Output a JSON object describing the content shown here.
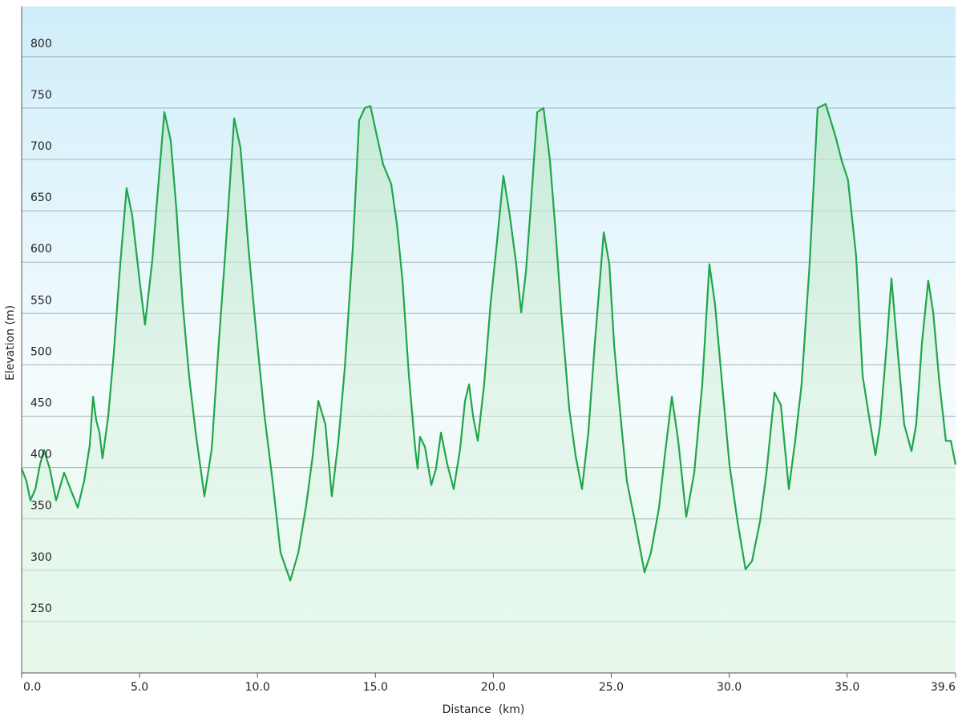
{
  "chart_data": {
    "type": "area",
    "xlabel": "Distance  (km)",
    "ylabel": "Elevation (m)",
    "color": "#1fa64a",
    "grid": true,
    "xlim": [
      0,
      39.6
    ],
    "ylim": [
      200,
      849
    ],
    "xticks": [
      {
        "value": 0,
        "label": "0.0"
      },
      {
        "value": 5,
        "label": "5.0"
      },
      {
        "value": 10,
        "label": "10.0"
      },
      {
        "value": 15,
        "label": "15.0"
      },
      {
        "value": 20,
        "label": "20.0"
      },
      {
        "value": 25,
        "label": "25.0"
      },
      {
        "value": 30,
        "label": "30.0"
      },
      {
        "value": 35,
        "label": "35.0"
      },
      39.6
    ],
    "yticks": [
      250,
      300,
      350,
      400,
      450,
      500,
      550,
      600,
      650,
      700,
      750,
      800
    ],
    "x": [
      0,
      0.2,
      0.37,
      0.58,
      0.78,
      0.95,
      1.19,
      1.46,
      1.8,
      2.07,
      2.38,
      2.65,
      2.89,
      3.03,
      3.16,
      3.3,
      3.43,
      3.67,
      3.91,
      4.18,
      4.45,
      4.69,
      5.0,
      5.23,
      5.54,
      5.74,
      6.05,
      6.32,
      6.56,
      6.83,
      7.1,
      7.38,
      7.75,
      8.06,
      8.33,
      8.67,
      9.01,
      9.28,
      9.62,
      9.96,
      10.3,
      10.64,
      10.98,
      11.39,
      11.73,
      12.07,
      12.34,
      12.58,
      12.88,
      13.15,
      13.43,
      13.7,
      14.04,
      14.31,
      14.55,
      14.79,
      15.06,
      15.33,
      15.67,
      15.91,
      16.15,
      16.42,
      16.69,
      16.79,
      16.89,
      17.1,
      17.37,
      17.57,
      17.78,
      18.05,
      18.32,
      18.59,
      18.8,
      18.97,
      19.14,
      19.34,
      19.61,
      19.88,
      20.16,
      20.43,
      20.7,
      20.97,
      21.18,
      21.38,
      21.58,
      21.86,
      22.13,
      22.4,
      22.64,
      22.88,
      23.22,
      23.49,
      23.76,
      24.03,
      24.3,
      24.68,
      24.92,
      25.12,
      25.39,
      25.66,
      26.0,
      26.41,
      26.68,
      27.02,
      27.29,
      27.57,
      27.84,
      28.18,
      28.52,
      28.86,
      29.16,
      29.4,
      29.67,
      30.01,
      30.35,
      30.69,
      30.97,
      31.31,
      31.58,
      31.92,
      32.19,
      32.53,
      32.8,
      33.07,
      33.41,
      33.75,
      34.09,
      34.5,
      34.77,
      35.04,
      35.38,
      35.66,
      35.93,
      36.2,
      36.4,
      36.68,
      36.88,
      37.15,
      37.42,
      37.73,
      37.93,
      38.17,
      38.44,
      38.65,
      38.92,
      39.19,
      39.4,
      39.6
    ],
    "values": [
      399,
      387,
      368,
      379,
      403,
      417,
      399,
      368,
      395,
      379,
      361,
      387,
      422,
      469,
      446,
      434,
      409,
      450,
      512,
      598,
      672,
      645,
      582,
      539,
      602,
      660,
      746,
      719,
      652,
      559,
      489,
      434,
      372,
      418,
      512,
      621,
      740,
      711,
      613,
      528,
      450,
      387,
      317,
      290,
      317,
      364,
      411,
      465,
      442,
      372,
      426,
      496,
      613,
      738,
      750,
      752,
      723,
      695,
      676,
      637,
      582,
      489,
      418,
      399,
      430,
      420,
      383,
      399,
      434,
      403,
      379,
      418,
      465,
      481,
      450,
      426,
      481,
      559,
      621,
      684,
      645,
      598,
      551,
      590,
      652,
      746,
      750,
      699,
      629,
      551,
      457,
      411,
      379,
      434,
      520,
      629,
      598,
      520,
      450,
      387,
      348,
      298,
      317,
      360,
      415,
      469,
      426,
      352,
      395,
      481,
      598,
      559,
      489,
      403,
      348,
      301,
      309,
      348,
      395,
      473,
      461,
      379,
      426,
      481,
      598,
      750,
      754,
      723,
      699,
      680,
      606,
      489,
      450,
      412,
      442,
      520,
      584,
      512,
      442,
      416,
      442,
      520,
      582,
      551,
      481,
      426,
      426,
      403
    ]
  }
}
